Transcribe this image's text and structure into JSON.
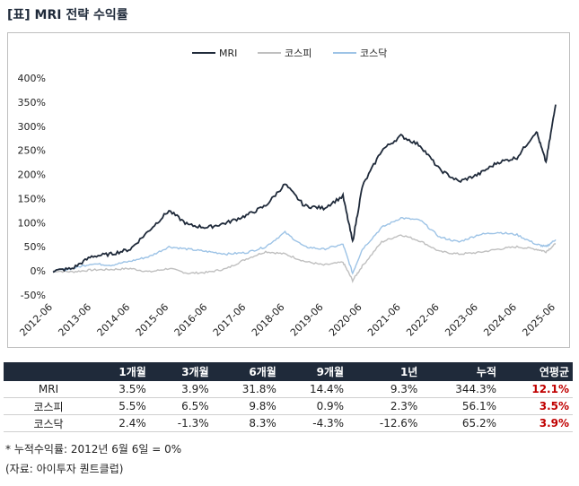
{
  "title": "[표] MRI 전략 수익률",
  "chart_data": {
    "type": "line",
    "x": [
      "2012-06",
      "2012-12",
      "2013-06",
      "2013-12",
      "2014-06",
      "2014-12",
      "2015-06",
      "2015-12",
      "2016-06",
      "2016-12",
      "2017-06",
      "2017-12",
      "2018-06",
      "2018-12",
      "2019-06",
      "2019-12",
      "2020-03",
      "2020-06",
      "2020-12",
      "2021-06",
      "2021-12",
      "2022-06",
      "2022-12",
      "2023-06",
      "2023-12",
      "2024-06",
      "2024-12",
      "2025-03",
      "2025-06"
    ],
    "x_ticks": [
      "2012-06",
      "2013-06",
      "2014-06",
      "2015-06",
      "2016-06",
      "2017-06",
      "2018-06",
      "2019-06",
      "2020-06",
      "2021-06",
      "2022-06",
      "2023-06",
      "2024-06",
      "2025-06"
    ],
    "y_ticks": [
      "-50%",
      "0%",
      "50%",
      "100%",
      "150%",
      "200%",
      "250%",
      "300%",
      "350%",
      "400%"
    ],
    "ylim": [
      -50,
      400
    ],
    "grid": false,
    "legend_position": "top",
    "series": [
      {
        "name": "MRI",
        "color": "#1f2a3a",
        "values": [
          0,
          5,
          30,
          35,
          45,
          85,
          125,
          95,
          90,
          100,
          115,
          135,
          180,
          135,
          130,
          155,
          60,
          175,
          250,
          280,
          260,
          210,
          185,
          200,
          225,
          235,
          290,
          225,
          345
        ]
      },
      {
        "name": "코스피",
        "color": "#bfbfbf",
        "values": [
          0,
          -2,
          2,
          3,
          5,
          -2,
          5,
          -5,
          -3,
          5,
          25,
          40,
          35,
          20,
          12,
          18,
          -20,
          10,
          60,
          75,
          62,
          40,
          35,
          38,
          45,
          50,
          45,
          40,
          56
        ]
      },
      {
        "name": "코스닥",
        "color": "#9dc3e6",
        "values": [
          0,
          5,
          15,
          12,
          20,
          30,
          50,
          45,
          40,
          35,
          38,
          50,
          80,
          50,
          45,
          55,
          -5,
          45,
          90,
          110,
          105,
          70,
          60,
          75,
          80,
          75,
          55,
          50,
          65
        ]
      }
    ]
  },
  "table": {
    "headers": [
      "",
      "1개월",
      "3개월",
      "6개월",
      "9개월",
      "1년",
      "누적",
      "연평균"
    ],
    "rows": [
      {
        "label": "MRI",
        "values": [
          "3.5%",
          "3.9%",
          "31.8%",
          "14.4%",
          "9.3%",
          "344.3%",
          "12.1%"
        ]
      },
      {
        "label": "코스피",
        "values": [
          "5.5%",
          "6.5%",
          "9.8%",
          "0.9%",
          "2.3%",
          "56.1%",
          "3.5%"
        ]
      },
      {
        "label": "코스닥",
        "values": [
          "2.4%",
          "-1.3%",
          "8.3%",
          "-4.3%",
          "-12.6%",
          "65.2%",
          "3.9%"
        ]
      }
    ]
  },
  "note": "* 누적수익률: 2012년 6월 6일 = 0%",
  "source": "(자료: 아이투자 퀀트클럽)"
}
